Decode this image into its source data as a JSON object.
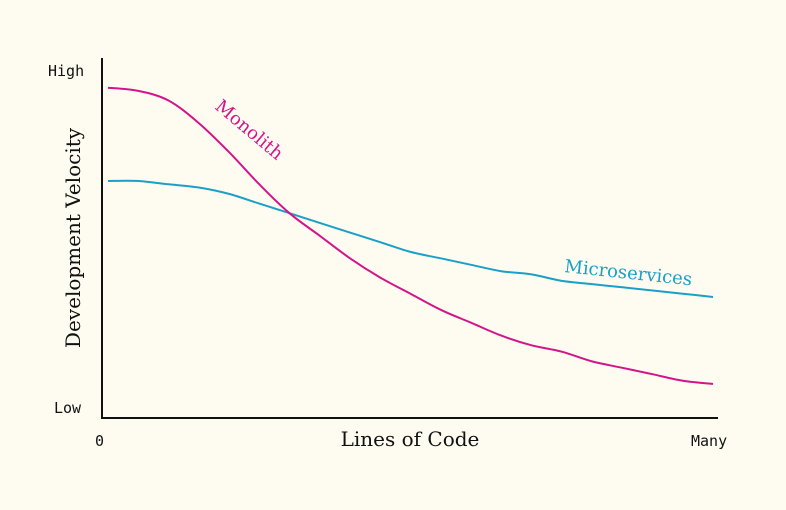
{
  "chart_data": {
    "type": "line",
    "xlabel": "Lines of Code",
    "ylabel": "Development Velocity",
    "x_ticks": [
      "0",
      "Many"
    ],
    "y_ticks": [
      "Low",
      "High"
    ],
    "xlim": [
      0,
      1
    ],
    "ylim": [
      0,
      1
    ],
    "grid": false,
    "series": [
      {
        "name": "Monolith",
        "color": "#d4148a",
        "x": [
          0,
          0.05,
          0.1,
          0.15,
          0.2,
          0.25,
          0.3,
          0.35,
          0.4,
          0.45,
          0.5,
          0.55,
          0.6,
          0.65,
          0.7,
          0.75,
          0.8,
          0.85,
          0.9,
          0.95,
          1.0
        ],
        "y": [
          0.97,
          0.96,
          0.93,
          0.86,
          0.77,
          0.67,
          0.58,
          0.51,
          0.44,
          0.38,
          0.33,
          0.28,
          0.24,
          0.2,
          0.17,
          0.15,
          0.12,
          0.1,
          0.08,
          0.06,
          0.05
        ]
      },
      {
        "name": "Microservices",
        "color": "#1aa0c8",
        "x": [
          0,
          0.05,
          0.1,
          0.15,
          0.2,
          0.25,
          0.3,
          0.35,
          0.4,
          0.45,
          0.5,
          0.55,
          0.6,
          0.65,
          0.7,
          0.75,
          0.8,
          0.85,
          0.9,
          0.95,
          1.0
        ],
        "y": [
          0.68,
          0.68,
          0.67,
          0.66,
          0.64,
          0.61,
          0.58,
          0.55,
          0.52,
          0.49,
          0.46,
          0.44,
          0.42,
          0.4,
          0.39,
          0.37,
          0.36,
          0.35,
          0.34,
          0.33,
          0.32
        ]
      }
    ]
  }
}
